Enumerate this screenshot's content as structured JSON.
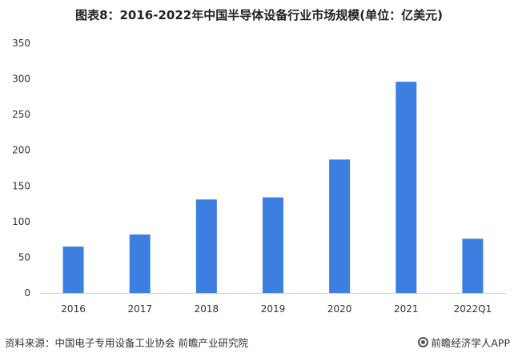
{
  "chart_data": {
    "type": "bar",
    "title": "图表8：2016-2022年中国半导体设备行业市场规模(单位：亿美元)",
    "categories": [
      "2016",
      "2017",
      "2018",
      "2019",
      "2020",
      "2021",
      "2022Q1"
    ],
    "values": [
      65,
      82,
      131,
      134,
      187,
      296,
      76
    ],
    "ylim": [
      0,
      350
    ],
    "yticks": [
      0,
      50,
      100,
      150,
      200,
      250,
      300,
      350
    ],
    "grid": false,
    "bar_color": "#3d7fe0"
  },
  "footer": {
    "source": "资料来源：中国电子专用设备工业协会 前瞻产业研究院",
    "brand": "前瞻经济学人APP"
  }
}
